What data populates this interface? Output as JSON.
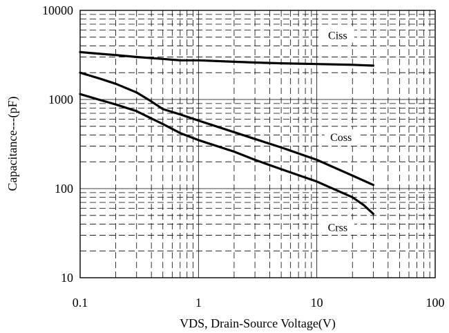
{
  "chart_data": {
    "type": "line",
    "title": "",
    "xlabel": "VDS, Drain-Source Voltage(V)",
    "ylabel": "Capacitance---(pF)",
    "xscale": "log",
    "yscale": "log",
    "xlim": [
      0.1,
      100
    ],
    "ylim": [
      10,
      10000
    ],
    "x_ticks": [
      "0.1",
      "1",
      "10",
      "100"
    ],
    "y_ticks": [
      "10",
      "100",
      "1000",
      "10000"
    ],
    "grid": true,
    "series": [
      {
        "name": "Ciss",
        "x": [
          0.1,
          0.15,
          0.2,
          0.3,
          0.5,
          0.7,
          1,
          2,
          3,
          5,
          10,
          20,
          30
        ],
        "y": [
          3400,
          3250,
          3150,
          3000,
          2850,
          2750,
          2750,
          2650,
          2600,
          2550,
          2500,
          2450,
          2400
        ]
      },
      {
        "name": "Coss",
        "x": [
          0.1,
          0.15,
          0.2,
          0.3,
          0.4,
          0.5,
          0.7,
          1,
          2,
          3,
          5,
          10,
          20,
          30
        ],
        "y": [
          2000,
          1700,
          1500,
          1200,
          950,
          780,
          680,
          580,
          430,
          360,
          290,
          210,
          140,
          110
        ]
      },
      {
        "name": "Crss",
        "x": [
          0.1,
          0.15,
          0.2,
          0.3,
          0.5,
          0.7,
          1,
          2,
          3,
          5,
          10,
          20,
          25,
          30
        ],
        "y": [
          1150,
          980,
          880,
          740,
          530,
          420,
          350,
          260,
          210,
          165,
          120,
          80,
          65,
          52
        ]
      }
    ],
    "annotations": [
      {
        "text": "Ciss",
        "x": 15,
        "y": 5300
      },
      {
        "text": "Coss",
        "x": 16,
        "y": 380
      },
      {
        "text": "Crss",
        "x": 15,
        "y": 37
      }
    ]
  }
}
